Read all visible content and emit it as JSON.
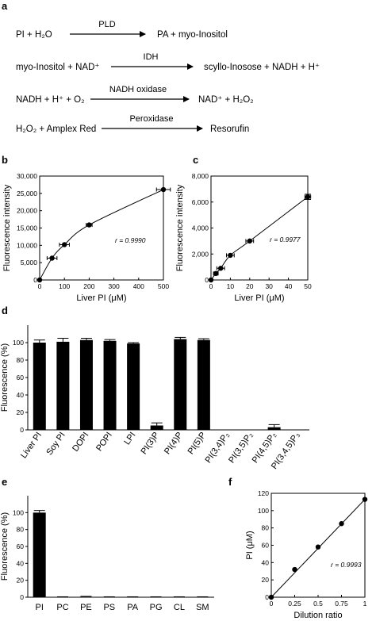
{
  "panel_labels": [
    "a",
    "b",
    "c",
    "d",
    "e",
    "f"
  ],
  "reactions": [
    {
      "left": "PI + H₂O",
      "enzyme": "PLD",
      "right": "PA + myo-Inositol"
    },
    {
      "left": "myo-Inositol + NAD⁺",
      "enzyme": "IDH",
      "right": "scyllo-Inosose + NADH + H⁺"
    },
    {
      "left": "NADH + H⁺ + O₂",
      "enzyme": "NADH oxidase",
      "right": "NAD⁺ + H₂O₂"
    },
    {
      "left": "H₂O₂ + Amplex Red",
      "enzyme": "Peroxidase",
      "right": "Resorufin"
    }
  ],
  "chart_data": [
    {
      "panel": "b",
      "type": "scatter",
      "xlabel": "Liver PI (μM)",
      "ylabel": "Fluorescence intensity",
      "xlim": [
        0,
        500
      ],
      "ylim": [
        0,
        30000
      ],
      "xticks": [
        0,
        100,
        200,
        300,
        400,
        500
      ],
      "yticks": [
        0,
        5000,
        10000,
        15000,
        20000,
        25000,
        30000
      ],
      "xtick_labels": [
        "0",
        "100",
        "200",
        "300",
        "400",
        "500"
      ],
      "ytick_labels": [
        "0",
        "5,000",
        "10,000",
        "15,000",
        "20,000",
        "25,000",
        "30,000"
      ],
      "points": [
        {
          "x": 0,
          "y": 0,
          "xerr": 0
        },
        {
          "x": 50,
          "y": 6300,
          "xerr": 20
        },
        {
          "x": 100,
          "y": 10200,
          "xerr": 20
        },
        {
          "x": 200,
          "y": 15900,
          "xerr": 12
        },
        {
          "x": 500,
          "y": 26100,
          "xerr": 28
        }
      ],
      "fit": "curve",
      "annotation": "r = 0.9990"
    },
    {
      "panel": "c",
      "type": "scatter",
      "xlabel": "Liver PI (μM)",
      "ylabel": "Fluorescence intensity",
      "xlim": [
        0,
        50
      ],
      "ylim": [
        0,
        8000
      ],
      "xticks": [
        0,
        10,
        20,
        30,
        40,
        50
      ],
      "yticks": [
        0,
        2000,
        4000,
        6000,
        8000
      ],
      "xtick_labels": [
        "0",
        "10",
        "20",
        "30",
        "40",
        "50"
      ],
      "ytick_labels": [
        "0",
        "2,000",
        "4,000",
        "6,000",
        "8,000"
      ],
      "points": [
        {
          "x": 0,
          "y": 0,
          "xerr": 0,
          "yerr": 0
        },
        {
          "x": 2.5,
          "y": 500,
          "xerr": 1.2,
          "yerr": 0
        },
        {
          "x": 5,
          "y": 900,
          "xerr": 2,
          "yerr": 0
        },
        {
          "x": 10,
          "y": 1900,
          "xerr": 2,
          "yerr": 0
        },
        {
          "x": 20,
          "y": 3000,
          "xerr": 2,
          "yerr": 0
        },
        {
          "x": 50,
          "y": 6400,
          "xerr": 1.5,
          "yerr": 200
        }
      ],
      "fit": "curve",
      "annotation": "r = 0.9977"
    },
    {
      "panel": "d",
      "type": "bar",
      "ylabel": "Fluorescence (%)",
      "ylim": [
        0,
        120
      ],
      "yticks": [
        0,
        20,
        40,
        60,
        80,
        100
      ],
      "categories": [
        "Liver PI",
        "Soy PI",
        "DOPI",
        "POPI",
        "LPI",
        "PI(3)P",
        "PI(4)P",
        "PI(5)P",
        "PI(3,4)P₂",
        "PI(3,5)P₂",
        "PI(4,5)P₂",
        "PI(3,4,5)P₃"
      ],
      "values": [
        100,
        101,
        103,
        102,
        99,
        5,
        104,
        103,
        0,
        0,
        3,
        0
      ],
      "errors": [
        3,
        4,
        2,
        1.5,
        1,
        3,
        2,
        1.5,
        0,
        0,
        3,
        0
      ]
    },
    {
      "panel": "e",
      "type": "bar",
      "ylabel": "Fluorescence (%)",
      "ylim": [
        0,
        120
      ],
      "yticks": [
        0,
        20,
        40,
        60,
        80,
        100
      ],
      "categories": [
        "PI",
        "PC",
        "PE",
        "PS",
        "PA",
        "PG",
        "CL",
        "SM"
      ],
      "values": [
        100,
        0,
        0.5,
        0,
        0,
        0,
        0,
        0
      ],
      "errors": [
        2.5,
        0.5,
        0.5,
        0.5,
        0.5,
        0.5,
        0.5,
        0.5
      ]
    },
    {
      "panel": "f",
      "type": "scatter",
      "xlabel": "Dilution ratio",
      "ylabel": "PI (μM)",
      "xlim": [
        0,
        1
      ],
      "ylim": [
        0,
        120
      ],
      "xticks": [
        0,
        0.25,
        0.5,
        0.75,
        1
      ],
      "yticks": [
        0,
        20,
        40,
        60,
        80,
        100,
        120
      ],
      "xtick_labels": [
        "0",
        "0.25",
        "0.5",
        "0.75",
        "1"
      ],
      "ytick_labels": [
        "0",
        "20",
        "40",
        "60",
        "80",
        "100",
        "120"
      ],
      "points": [
        {
          "x": 0,
          "y": 0
        },
        {
          "x": 0.25,
          "y": 32
        },
        {
          "x": 0.5,
          "y": 58
        },
        {
          "x": 0.75,
          "y": 85
        },
        {
          "x": 1,
          "y": 113
        }
      ],
      "fit": "linear",
      "annotation": "r = 0.9993"
    }
  ]
}
